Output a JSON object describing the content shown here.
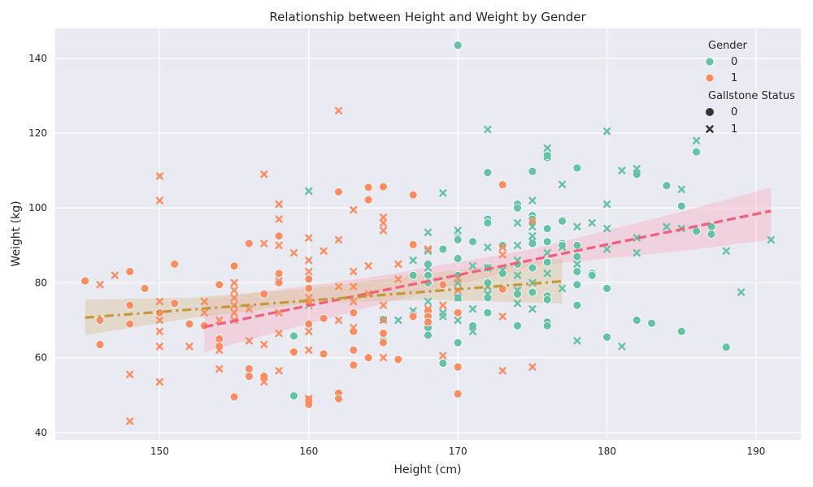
{
  "chart_data": {
    "type": "scatter",
    "title": "Relationship between Height and Weight by Gender",
    "xlabel": "Height (cm)",
    "ylabel": "Weight (kg)",
    "xlim": [
      143,
      193
    ],
    "ylim": [
      38,
      148
    ],
    "xticks": [
      150,
      160,
      170,
      180,
      190
    ],
    "yticks": [
      40,
      60,
      80,
      100,
      120,
      140
    ],
    "grid": true,
    "legend_placement": "top-right",
    "legend": {
      "hue_title": "Gender",
      "hue_entries": [
        {
          "label": "0",
          "color": "#66c2a5"
        },
        {
          "label": "1",
          "color": "#fc8d62"
        }
      ],
      "style_title": "Gallstone Status",
      "style_entries": [
        {
          "label": "0",
          "marker": "circle"
        },
        {
          "label": "1",
          "marker": "x"
        }
      ]
    },
    "colors": {
      "gender_0": "#66c2a5",
      "gender_1": "#fc8d62",
      "fit_gender_0": "#f25f7d",
      "fit_gender_1": "#c3993b",
      "ci_gender_0": "#f7b6c6",
      "ci_gender_1": "#d9c59a",
      "background": "#eaeaf2",
      "grid": "#ffffff"
    },
    "series": [
      {
        "gender": "0",
        "gallstone": "0",
        "marker": "circle",
        "points": [
          [
            170,
            143.5
          ],
          [
            172,
            109.5
          ],
          [
            175,
            109.8
          ],
          [
            176,
            113.5
          ],
          [
            176,
            114
          ],
          [
            178,
            110.7
          ],
          [
            182,
            109
          ],
          [
            184,
            106
          ],
          [
            185,
            100.5
          ],
          [
            186,
            115
          ],
          [
            186,
            93.8
          ],
          [
            187,
            95
          ],
          [
            187,
            93
          ],
          [
            174,
            101
          ],
          [
            174,
            100
          ],
          [
            175,
            98
          ],
          [
            175,
            97
          ],
          [
            175,
            96
          ],
          [
            172,
            97
          ],
          [
            172,
            96
          ],
          [
            173,
            90
          ],
          [
            170,
            92
          ],
          [
            170,
            91.5
          ],
          [
            168,
            85
          ],
          [
            168,
            82
          ],
          [
            168,
            70
          ],
          [
            168,
            68
          ],
          [
            168,
            66
          ],
          [
            170,
            86.5
          ],
          [
            170,
            76
          ],
          [
            171,
            91
          ],
          [
            171,
            68.5
          ],
          [
            172,
            84
          ],
          [
            172,
            80
          ],
          [
            172,
            76
          ],
          [
            172,
            72
          ],
          [
            174,
            85
          ],
          [
            174,
            77
          ],
          [
            174,
            68.5
          ],
          [
            175,
            90.5
          ],
          [
            175,
            84
          ],
          [
            175,
            77.5
          ],
          [
            176,
            94.5
          ],
          [
            176,
            91
          ],
          [
            176,
            85.5
          ],
          [
            176,
            76.5
          ],
          [
            176,
            75.5
          ],
          [
            176,
            69.5
          ],
          [
            176,
            68.5
          ],
          [
            177,
            96.5
          ],
          [
            177,
            90.5
          ],
          [
            177,
            90
          ],
          [
            178,
            90
          ],
          [
            178,
            87
          ],
          [
            178,
            83
          ],
          [
            178,
            79.5
          ],
          [
            178,
            74
          ],
          [
            179,
            82.5
          ],
          [
            179,
            82
          ],
          [
            180,
            78.5
          ],
          [
            180,
            65.5
          ],
          [
            182,
            70
          ],
          [
            183,
            69.2
          ],
          [
            185,
            67
          ],
          [
            188,
            62.8
          ],
          [
            159,
            65.8
          ],
          [
            159,
            49.8
          ],
          [
            155,
            49.3
          ],
          [
            165,
            70.2
          ],
          [
            167,
            82
          ],
          [
            169,
            58.5
          ],
          [
            170,
            64
          ],
          [
            169,
            89
          ],
          [
            168,
            80
          ],
          [
            170,
            82
          ],
          [
            173,
            82.5
          ]
        ]
      },
      {
        "gender": "0",
        "gallstone": "1",
        "marker": "x",
        "points": [
          [
            172,
            121
          ],
          [
            176,
            116
          ],
          [
            176,
            113.8
          ],
          [
            180,
            120.5
          ],
          [
            181,
            110
          ],
          [
            182,
            110.5
          ],
          [
            186,
            118
          ],
          [
            185,
            105
          ],
          [
            180,
            101
          ],
          [
            177,
            106.3
          ],
          [
            175,
            102
          ],
          [
            169,
            104
          ],
          [
            170,
            94
          ],
          [
            168,
            93.5
          ],
          [
            175,
            95
          ],
          [
            174,
            96
          ],
          [
            179,
            96
          ],
          [
            178,
            95
          ],
          [
            180,
            94.5
          ],
          [
            184,
            95
          ],
          [
            185,
            94.5
          ],
          [
            191,
            91.5
          ],
          [
            188,
            88.5
          ],
          [
            182,
            92
          ],
          [
            182,
            88
          ],
          [
            180,
            89
          ],
          [
            178,
            85
          ],
          [
            176,
            88
          ],
          [
            177,
            89.5
          ],
          [
            175,
            92.5
          ],
          [
            175,
            91
          ],
          [
            174,
            90
          ],
          [
            174,
            86
          ],
          [
            176,
            82.5
          ],
          [
            177,
            78.5
          ],
          [
            175,
            80
          ],
          [
            175,
            73
          ],
          [
            174,
            78
          ],
          [
            174,
            74.5
          ],
          [
            172,
            89.5
          ],
          [
            172,
            84
          ],
          [
            172,
            79
          ],
          [
            172,
            77
          ],
          [
            171,
            84.5
          ],
          [
            171,
            73
          ],
          [
            171,
            67
          ],
          [
            170,
            80
          ],
          [
            170,
            76
          ],
          [
            170,
            70
          ],
          [
            169,
            72
          ],
          [
            169,
            71
          ],
          [
            168,
            88.5
          ],
          [
            168,
            84
          ],
          [
            168,
            75
          ],
          [
            168,
            69
          ],
          [
            167,
            86
          ],
          [
            167,
            72.5
          ],
          [
            166,
            70
          ],
          [
            165,
            65.5
          ],
          [
            160,
            104.5
          ],
          [
            160,
            74
          ],
          [
            181,
            63
          ],
          [
            178,
            64.5
          ],
          [
            189,
            77.5
          ],
          [
            173,
            83.5
          ],
          [
            174,
            82
          ]
        ]
      },
      {
        "gender": "1",
        "gallstone": "0",
        "marker": "circle",
        "points": [
          [
            145,
            80.5
          ],
          [
            146,
            70
          ],
          [
            146,
            63.5
          ],
          [
            148,
            83
          ],
          [
            148,
            74
          ],
          [
            148,
            69
          ],
          [
            149,
            78.5
          ],
          [
            150,
            72
          ],
          [
            151,
            85
          ],
          [
            151,
            74.5
          ],
          [
            152,
            69
          ],
          [
            153,
            68.5
          ],
          [
            154,
            79.5
          ],
          [
            154,
            65
          ],
          [
            154,
            63
          ],
          [
            155,
            84.5
          ],
          [
            155,
            49.5
          ],
          [
            156,
            90.5
          ],
          [
            156,
            57
          ],
          [
            156,
            55
          ],
          [
            157,
            77
          ],
          [
            157,
            55
          ],
          [
            158,
            92.5
          ],
          [
            158,
            82.5
          ],
          [
            158,
            80
          ],
          [
            159,
            61.5
          ],
          [
            160,
            81
          ],
          [
            160,
            78.5
          ],
          [
            160,
            74.5
          ],
          [
            160,
            69
          ],
          [
            160,
            48.8
          ],
          [
            160,
            47.5
          ],
          [
            161,
            70.5
          ],
          [
            161,
            61
          ],
          [
            162,
            104.3
          ],
          [
            162,
            50.5
          ],
          [
            162,
            49
          ],
          [
            163,
            72
          ],
          [
            163,
            67
          ],
          [
            163,
            62
          ],
          [
            163,
            58
          ],
          [
            164,
            105.5
          ],
          [
            164,
            102.2
          ],
          [
            164,
            60
          ],
          [
            165,
            105.7
          ],
          [
            165,
            66.5
          ],
          [
            165,
            64
          ],
          [
            166,
            59.5
          ],
          [
            167,
            103.5
          ],
          [
            167,
            90.2
          ],
          [
            167,
            71
          ],
          [
            168,
            72.5
          ],
          [
            168,
            71
          ],
          [
            168,
            69.5
          ],
          [
            169,
            79.5
          ],
          [
            170,
            72
          ],
          [
            170,
            57.5
          ],
          [
            170,
            50.3
          ],
          [
            173,
            106.2
          ],
          [
            173,
            78.3
          ]
        ]
      },
      {
        "gender": "1",
        "gallstone": "1",
        "marker": "x",
        "points": [
          [
            146,
            79.5
          ],
          [
            147,
            82
          ],
          [
            148,
            55.5
          ],
          [
            148,
            43
          ],
          [
            150,
            108.5
          ],
          [
            150,
            102
          ],
          [
            150,
            75
          ],
          [
            150,
            70
          ],
          [
            150,
            67
          ],
          [
            150,
            63
          ],
          [
            150,
            53.5
          ],
          [
            152,
            63
          ],
          [
            153,
            75
          ],
          [
            153,
            72
          ],
          [
            154,
            70
          ],
          [
            154,
            62
          ],
          [
            154,
            57
          ],
          [
            155,
            80
          ],
          [
            155,
            78
          ],
          [
            155,
            76
          ],
          [
            155,
            74
          ],
          [
            155,
            72
          ],
          [
            155,
            70
          ],
          [
            156,
            73
          ],
          [
            156,
            64.5
          ],
          [
            157,
            109
          ],
          [
            157,
            90.5
          ],
          [
            157,
            63.5
          ],
          [
            157,
            53.5
          ],
          [
            158,
            101
          ],
          [
            158,
            97
          ],
          [
            158,
            90
          ],
          [
            158,
            80.5
          ],
          [
            158,
            72
          ],
          [
            158,
            66.5
          ],
          [
            158,
            56.5
          ],
          [
            159,
            88
          ],
          [
            160,
            92
          ],
          [
            160,
            86
          ],
          [
            160,
            83
          ],
          [
            160,
            76
          ],
          [
            160,
            67
          ],
          [
            160,
            62
          ],
          [
            160,
            49
          ],
          [
            161,
            88.5
          ],
          [
            162,
            126
          ],
          [
            162,
            91.5
          ],
          [
            162,
            79
          ],
          [
            162,
            70
          ],
          [
            163,
            99.5
          ],
          [
            163,
            83
          ],
          [
            163,
            79
          ],
          [
            163,
            75
          ],
          [
            163,
            68
          ],
          [
            164,
            84.5
          ],
          [
            164,
            77
          ],
          [
            165,
            97.5
          ],
          [
            165,
            96
          ],
          [
            165,
            94
          ],
          [
            165,
            74
          ],
          [
            165,
            60
          ],
          [
            166,
            85
          ],
          [
            166,
            81
          ],
          [
            168,
            89
          ],
          [
            168,
            73
          ],
          [
            169,
            60.5
          ],
          [
            169,
            74
          ],
          [
            170,
            81
          ],
          [
            170,
            78
          ],
          [
            173,
            89.5
          ],
          [
            173,
            87.5
          ],
          [
            173,
            71
          ],
          [
            173,
            56.5
          ],
          [
            175,
            96.5
          ],
          [
            175,
            57.5
          ],
          [
            165,
            70
          ]
        ]
      }
    ],
    "regression": [
      {
        "gender": "0",
        "line": [
          [
            153,
            68.2
          ],
          [
            191,
            99.2
          ]
        ],
        "ci_lower": [
          [
            153,
            61.5
          ],
          [
            165,
            74.5
          ],
          [
            175,
            84.5
          ],
          [
            185,
            88.5
          ],
          [
            191,
            91.5
          ]
        ],
        "ci_upper": [
          [
            153,
            75.5
          ],
          [
            165,
            82
          ],
          [
            175,
            89
          ],
          [
            185,
            99
          ],
          [
            191,
            105.5
          ]
        ]
      },
      {
        "gender": "1",
        "line": [
          [
            145,
            70.7
          ],
          [
            177,
            80.4
          ]
        ],
        "ci_lower": [
          [
            145,
            66
          ],
          [
            152,
            70.5
          ],
          [
            160,
            74.5
          ],
          [
            168,
            75.5
          ],
          [
            177,
            74.5
          ]
        ],
        "ci_upper": [
          [
            145,
            75.5
          ],
          [
            152,
            76
          ],
          [
            160,
            78.5
          ],
          [
            168,
            82.5
          ],
          [
            177,
            86.5
          ]
        ]
      }
    ]
  }
}
